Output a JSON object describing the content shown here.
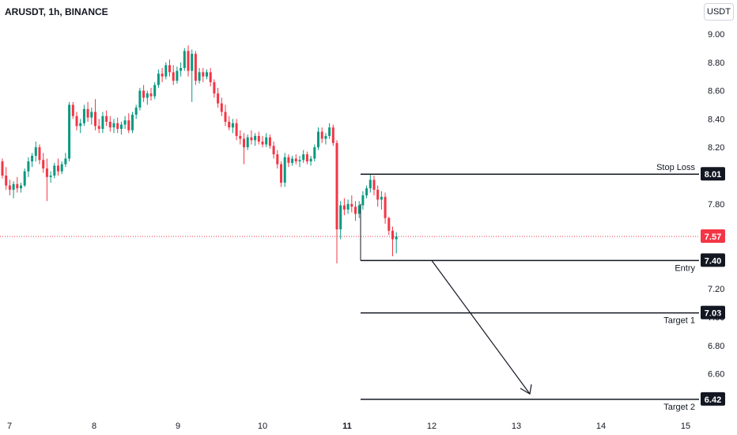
{
  "header": {
    "symbol": "ARUSDT, 1h, BINANCE",
    "currency": "USDT"
  },
  "chart_data": {
    "type": "candlestick",
    "xlabel": "",
    "ylabel": "",
    "x_ticks": [
      "7",
      "8",
      "9",
      "10",
      "11",
      "12",
      "13",
      "14",
      "15"
    ],
    "y_ticks": [
      "9.00",
      "8.80",
      "8.60",
      "8.40",
      "8.20",
      "7.80"
    ],
    "ylim": [
      6.2,
      9.1
    ],
    "grid": false,
    "last_price": {
      "label": "7.57",
      "value": 7.57
    },
    "levels": [
      {
        "name": "Stop Loss",
        "value": 8.01,
        "label": "8.01"
      },
      {
        "name": "Entry",
        "value": 7.4,
        "label": "7.40"
      },
      {
        "name": "Target 1",
        "value": 7.03,
        "label": "7.03"
      },
      {
        "name": "Target 2",
        "value": 6.42,
        "label": "6.42"
      }
    ],
    "candles": [
      [
        8.1,
        8.12,
        7.98,
        8.0
      ],
      [
        8.0,
        8.06,
        7.9,
        7.93
      ],
      [
        7.93,
        7.97,
        7.86,
        7.9
      ],
      [
        7.9,
        7.96,
        7.84,
        7.94
      ],
      [
        7.94,
        7.99,
        7.88,
        7.91
      ],
      [
        7.91,
        7.95,
        7.88,
        7.93
      ],
      [
        7.93,
        8.05,
        7.92,
        8.03
      ],
      [
        8.03,
        8.13,
        7.99,
        8.1
      ],
      [
        8.1,
        8.16,
        8.06,
        8.14
      ],
      [
        8.14,
        8.24,
        8.1,
        8.2
      ],
      [
        8.2,
        8.22,
        8.08,
        8.11
      ],
      [
        8.11,
        8.16,
        8.02,
        8.05
      ],
      [
        8.05,
        8.12,
        7.82,
        7.99
      ],
      [
        7.99,
        8.03,
        7.95,
        8.0
      ],
      [
        8.0,
        8.09,
        7.98,
        8.07
      ],
      [
        8.07,
        8.12,
        8.0,
        8.03
      ],
      [
        8.03,
        8.1,
        8.01,
        8.08
      ],
      [
        8.08,
        8.16,
        8.06,
        8.12
      ],
      [
        8.12,
        8.52,
        8.1,
        8.5
      ],
      [
        8.5,
        8.52,
        8.4,
        8.42
      ],
      [
        8.42,
        8.45,
        8.32,
        8.35
      ],
      [
        8.35,
        8.4,
        8.3,
        8.37
      ],
      [
        8.37,
        8.5,
        8.35,
        8.47
      ],
      [
        8.47,
        8.52,
        8.38,
        8.41
      ],
      [
        8.41,
        8.48,
        8.36,
        8.45
      ],
      [
        8.45,
        8.54,
        8.32,
        8.35
      ],
      [
        8.35,
        8.4,
        8.3,
        8.33
      ],
      [
        8.33,
        8.45,
        8.3,
        8.42
      ],
      [
        8.42,
        8.46,
        8.35,
        8.38
      ],
      [
        8.38,
        8.42,
        8.31,
        8.34
      ],
      [
        8.34,
        8.4,
        8.3,
        8.37
      ],
      [
        8.37,
        8.41,
        8.3,
        8.33
      ],
      [
        8.33,
        8.38,
        8.29,
        8.36
      ],
      [
        8.36,
        8.42,
        8.33,
        8.39
      ],
      [
        8.39,
        8.44,
        8.3,
        8.32
      ],
      [
        8.32,
        8.45,
        8.3,
        8.43
      ],
      [
        8.43,
        8.5,
        8.4,
        8.48
      ],
      [
        8.48,
        8.62,
        8.46,
        8.6
      ],
      [
        8.6,
        8.64,
        8.52,
        8.55
      ],
      [
        8.55,
        8.6,
        8.5,
        8.58
      ],
      [
        8.58,
        8.62,
        8.53,
        8.56
      ],
      [
        8.56,
        8.66,
        8.54,
        8.64
      ],
      [
        8.64,
        8.75,
        8.62,
        8.72
      ],
      [
        8.72,
        8.76,
        8.66,
        8.7
      ],
      [
        8.7,
        8.8,
        8.68,
        8.78
      ],
      [
        8.78,
        8.82,
        8.7,
        8.73
      ],
      [
        8.73,
        8.78,
        8.64,
        8.67
      ],
      [
        8.67,
        8.77,
        8.65,
        8.74
      ],
      [
        8.74,
        8.8,
        8.7,
        8.76
      ],
      [
        8.76,
        8.9,
        8.74,
        8.88
      ],
      [
        8.88,
        8.92,
        8.7,
        8.74
      ],
      [
        8.74,
        8.89,
        8.52,
        8.86
      ],
      [
        8.86,
        8.88,
        8.64,
        8.67
      ],
      [
        8.67,
        8.76,
        8.65,
        8.73
      ],
      [
        8.73,
        8.76,
        8.66,
        8.7
      ],
      [
        8.7,
        8.75,
        8.68,
        8.73
      ],
      [
        8.73,
        8.76,
        8.63,
        8.66
      ],
      [
        8.66,
        8.68,
        8.55,
        8.58
      ],
      [
        8.58,
        8.62,
        8.48,
        8.51
      ],
      [
        8.51,
        8.55,
        8.42,
        8.45
      ],
      [
        8.45,
        8.5,
        8.35,
        8.38
      ],
      [
        8.38,
        8.42,
        8.32,
        8.34
      ],
      [
        8.34,
        8.4,
        8.3,
        8.37
      ],
      [
        8.37,
        8.4,
        8.25,
        8.28
      ],
      [
        8.28,
        8.32,
        8.22,
        8.26
      ],
      [
        8.26,
        8.3,
        8.08,
        8.2
      ],
      [
        8.2,
        8.29,
        8.18,
        8.27
      ],
      [
        8.27,
        8.32,
        8.22,
        8.25
      ],
      [
        8.25,
        8.3,
        8.21,
        8.28
      ],
      [
        8.28,
        8.31,
        8.22,
        8.24
      ],
      [
        8.24,
        8.28,
        8.2,
        8.22
      ],
      [
        8.22,
        8.3,
        8.2,
        8.27
      ],
      [
        8.27,
        8.29,
        8.19,
        8.21
      ],
      [
        8.21,
        8.24,
        8.12,
        8.15
      ],
      [
        8.15,
        8.18,
        8.05,
        8.08
      ],
      [
        8.08,
        8.1,
        7.92,
        7.95
      ],
      [
        7.95,
        8.16,
        7.92,
        8.13
      ],
      [
        8.13,
        8.15,
        8.06,
        8.09
      ],
      [
        8.09,
        8.14,
        8.07,
        8.12
      ],
      [
        8.12,
        8.15,
        8.08,
        8.1
      ],
      [
        8.1,
        8.14,
        8.06,
        8.11
      ],
      [
        8.11,
        8.18,
        8.09,
        8.15
      ],
      [
        8.15,
        8.17,
        8.08,
        8.1
      ],
      [
        8.1,
        8.14,
        8.07,
        8.12
      ],
      [
        8.12,
        8.22,
        8.1,
        8.2
      ],
      [
        8.2,
        8.34,
        8.18,
        8.31
      ],
      [
        8.31,
        8.34,
        8.23,
        8.26
      ],
      [
        8.26,
        8.3,
        8.22,
        8.28
      ],
      [
        8.28,
        8.37,
        8.26,
        8.34
      ],
      [
        8.34,
        8.36,
        8.21,
        8.23
      ],
      [
        8.23,
        8.25,
        7.38,
        7.62
      ],
      [
        7.62,
        7.82,
        7.55,
        7.79
      ],
      [
        7.79,
        7.84,
        7.72,
        7.76
      ],
      [
        7.76,
        7.83,
        7.73,
        7.8
      ],
      [
        7.8,
        7.86,
        7.74,
        7.78
      ],
      [
        7.78,
        7.82,
        7.68,
        7.73
      ],
      [
        7.73,
        7.82,
        7.7,
        7.79
      ],
      [
        7.79,
        7.89,
        7.76,
        7.86
      ],
      [
        7.86,
        7.93,
        7.84,
        7.91
      ],
      [
        7.91,
        8.01,
        7.88,
        7.97
      ],
      [
        7.97,
        8.0,
        7.86,
        7.9
      ],
      [
        7.9,
        7.93,
        7.78,
        7.83
      ],
      [
        7.83,
        7.89,
        7.76,
        7.85
      ],
      [
        7.85,
        7.88,
        7.66,
        7.7
      ],
      [
        7.7,
        7.71,
        7.58,
        7.61
      ],
      [
        7.61,
        7.64,
        7.43,
        7.55
      ],
      [
        7.55,
        7.6,
        7.45,
        7.57
      ]
    ]
  },
  "colors": {
    "up": "#089981",
    "down": "#f23645",
    "line": "#131722",
    "last_price_line": "#f23645"
  }
}
